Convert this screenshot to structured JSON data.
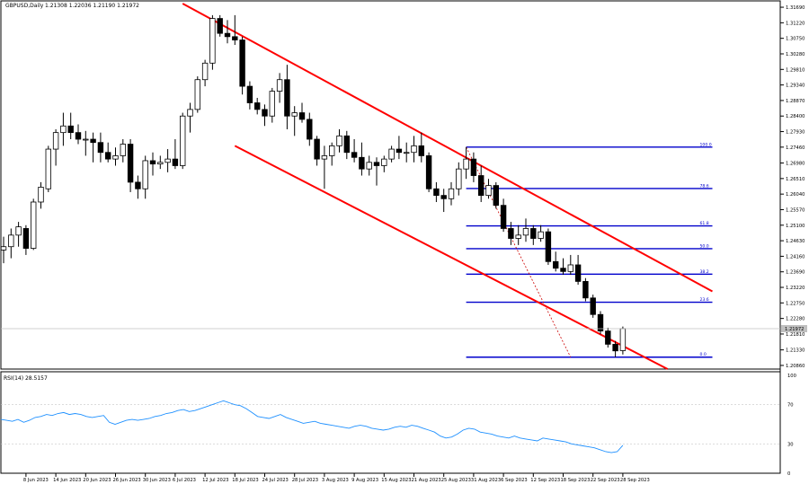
{
  "header": {
    "symbol_title": "GBPUSD,Daily",
    "ohlc_text": "1.21308 1.22036 1.21190 1.21972"
  },
  "rsi_panel": {
    "label": "RSI(14) 28.5157",
    "levels": [
      "100",
      "70",
      "30",
      "0"
    ]
  },
  "colors": {
    "channel": "#ff0000",
    "fib": "#0000cc",
    "rsi_line": "#1e90ff",
    "retrace_dotted": "#cc0000",
    "bull_body": "#ffffff",
    "bear_body": "#000000"
  },
  "chart_data": [
    {
      "type": "candlestick",
      "title": "GBPUSD,Daily",
      "y_ticks": [
        "1.31690",
        "1.31220",
        "1.30750",
        "1.30280",
        "1.29810",
        "1.29340",
        "1.28870",
        "1.28400",
        "1.27930",
        "1.27460",
        "1.26980",
        "1.26510",
        "1.26040",
        "1.25570",
        "1.25100",
        "1.24630",
        "1.24160",
        "1.23690",
        "1.23220",
        "1.22750",
        "1.22280",
        "1.21810",
        "1.21330",
        "1.20860"
      ],
      "ylim": [
        1.2075,
        1.318
      ],
      "current_price": "1.21972",
      "x_ticks": [
        "8 Jun 2023",
        "14 Jun 2023",
        "20 Jun 2023",
        "26 Jun 2023",
        "30 Jun 2023",
        "6 Jul 2023",
        "12 Jul 2023",
        "18 Jul 2023",
        "24 Jul 2023",
        "28 Jul 2023",
        "3 Aug 2023",
        "9 Aug 2023",
        "15 Aug 2023",
        "21 Aug 2023",
        "25 Aug 2023",
        "31 Aug 2023",
        "6 Sep 2023",
        "12 Sep 2023",
        "18 Sep 2023",
        "22 Sep 2023",
        "28 Sep 2023"
      ],
      "candles": [
        {
          "date": "5 Jun 2023",
          "o": 1.2435,
          "h": 1.2475,
          "l": 1.2395,
          "c": 1.2445
        },
        {
          "date": "6 Jun 2023",
          "o": 1.2445,
          "h": 1.25,
          "l": 1.241,
          "c": 1.248
        },
        {
          "date": "7 Jun 2023",
          "o": 1.248,
          "h": 1.252,
          "l": 1.2445,
          "c": 1.2505
        },
        {
          "date": "8 Jun 2023",
          "o": 1.25,
          "h": 1.251,
          "l": 1.242,
          "c": 1.244
        },
        {
          "date": "9 Jun 2023",
          "o": 1.244,
          "h": 1.259,
          "l": 1.2435,
          "c": 1.258
        },
        {
          "date": "12 Jun 2023",
          "o": 1.258,
          "h": 1.264,
          "l": 1.256,
          "c": 1.2625
        },
        {
          "date": "13 Jun 2023",
          "o": 1.262,
          "h": 1.275,
          "l": 1.261,
          "c": 1.274
        },
        {
          "date": "14 Jun 2023",
          "o": 1.274,
          "h": 1.28,
          "l": 1.269,
          "c": 1.279
        },
        {
          "date": "15 Jun 2023",
          "o": 1.279,
          "h": 1.285,
          "l": 1.275,
          "c": 1.281
        },
        {
          "date": "16 Jun 2023",
          "o": 1.281,
          "h": 1.285,
          "l": 1.277,
          "c": 1.279
        },
        {
          "date": "19 Jun 2023",
          "o": 1.279,
          "h": 1.2815,
          "l": 1.2755,
          "c": 1.277
        },
        {
          "date": "20 Jun 2023",
          "o": 1.277,
          "h": 1.2795,
          "l": 1.272,
          "c": 1.277
        },
        {
          "date": "21 Jun 2023",
          "o": 1.277,
          "h": 1.279,
          "l": 1.27,
          "c": 1.276
        },
        {
          "date": "22 Jun 2023",
          "o": 1.276,
          "h": 1.279,
          "l": 1.27,
          "c": 1.273
        },
        {
          "date": "23 Jun 2023",
          "o": 1.273,
          "h": 1.276,
          "l": 1.27,
          "c": 1.271
        },
        {
          "date": "26 Jun 2023",
          "o": 1.271,
          "h": 1.2745,
          "l": 1.269,
          "c": 1.272
        },
        {
          "date": "27 Jun 2023",
          "o": 1.272,
          "h": 1.277,
          "l": 1.27,
          "c": 1.2755
        },
        {
          "date": "28 Jun 2023",
          "o": 1.2755,
          "h": 1.277,
          "l": 1.261,
          "c": 1.264
        },
        {
          "date": "29 Jun 2023",
          "o": 1.264,
          "h": 1.266,
          "l": 1.259,
          "c": 1.262
        },
        {
          "date": "30 Jun 2023",
          "o": 1.262,
          "h": 1.272,
          "l": 1.259,
          "c": 1.2705
        },
        {
          "date": "3 Jul 2023",
          "o": 1.2705,
          "h": 1.273,
          "l": 1.266,
          "c": 1.2695
        },
        {
          "date": "4 Jul 2023",
          "o": 1.2695,
          "h": 1.272,
          "l": 1.268,
          "c": 1.27
        },
        {
          "date": "5 Jul 2023",
          "o": 1.27,
          "h": 1.274,
          "l": 1.267,
          "c": 1.271
        },
        {
          "date": "6 Jul 2023",
          "o": 1.271,
          "h": 1.277,
          "l": 1.268,
          "c": 1.269
        },
        {
          "date": "7 Jul 2023",
          "o": 1.269,
          "h": 1.285,
          "l": 1.268,
          "c": 1.284
        },
        {
          "date": "10 Jul 2023",
          "o": 1.284,
          "h": 1.288,
          "l": 1.279,
          "c": 1.286
        },
        {
          "date": "11 Jul 2023",
          "o": 1.286,
          "h": 1.296,
          "l": 1.285,
          "c": 1.295
        },
        {
          "date": "12 Jul 2023",
          "o": 1.295,
          "h": 1.301,
          "l": 1.293,
          "c": 1.3
        },
        {
          "date": "13 Jul 2023",
          "o": 1.3,
          "h": 1.3145,
          "l": 1.298,
          "c": 1.3135
        },
        {
          "date": "14 Jul 2023",
          "o": 1.3135,
          "h": 1.3145,
          "l": 1.308,
          "c": 1.309
        },
        {
          "date": "17 Jul 2023",
          "o": 1.309,
          "h": 1.313,
          "l": 1.306,
          "c": 1.308
        },
        {
          "date": "18 Jul 2023",
          "o": 1.308,
          "h": 1.3145,
          "l": 1.3055,
          "c": 1.307
        },
        {
          "date": "19 Jul 2023",
          "o": 1.307,
          "h": 1.308,
          "l": 1.2905,
          "c": 1.293
        },
        {
          "date": "20 Jul 2023",
          "o": 1.293,
          "h": 1.2945,
          "l": 1.286,
          "c": 1.288
        },
        {
          "date": "21 Jul 2023",
          "o": 1.288,
          "h": 1.2895,
          "l": 1.2845,
          "c": 1.286
        },
        {
          "date": "24 Jul 2023",
          "o": 1.286,
          "h": 1.2875,
          "l": 1.281,
          "c": 1.284
        },
        {
          "date": "25 Jul 2023",
          "o": 1.284,
          "h": 1.2925,
          "l": 1.282,
          "c": 1.2915
        },
        {
          "date": "26 Jul 2023",
          "o": 1.2915,
          "h": 1.297,
          "l": 1.288,
          "c": 1.295
        },
        {
          "date": "27 Jul 2023",
          "o": 1.295,
          "h": 1.2995,
          "l": 1.28,
          "c": 1.284
        },
        {
          "date": "28 Jul 2023",
          "o": 1.284,
          "h": 1.287,
          "l": 1.278,
          "c": 1.285
        },
        {
          "date": "31 Jul 2023",
          "o": 1.285,
          "h": 1.288,
          "l": 1.282,
          "c": 1.283
        },
        {
          "date": "1 Aug 2023",
          "o": 1.283,
          "h": 1.285,
          "l": 1.275,
          "c": 1.277
        },
        {
          "date": "2 Aug 2023",
          "o": 1.277,
          "h": 1.278,
          "l": 1.269,
          "c": 1.271
        },
        {
          "date": "3 Aug 2023",
          "o": 1.271,
          "h": 1.275,
          "l": 1.262,
          "c": 1.272
        },
        {
          "date": "4 Aug 2023",
          "o": 1.272,
          "h": 1.276,
          "l": 1.269,
          "c": 1.275
        },
        {
          "date": "7 Aug 2023",
          "o": 1.275,
          "h": 1.28,
          "l": 1.273,
          "c": 1.278
        },
        {
          "date": "8 Aug 2023",
          "o": 1.278,
          "h": 1.2795,
          "l": 1.271,
          "c": 1.273
        },
        {
          "date": "9 Aug 2023",
          "o": 1.273,
          "h": 1.277,
          "l": 1.27,
          "c": 1.2715
        },
        {
          "date": "10 Aug 2023",
          "o": 1.2715,
          "h": 1.276,
          "l": 1.266,
          "c": 1.268
        },
        {
          "date": "11 Aug 2023",
          "o": 1.268,
          "h": 1.272,
          "l": 1.266,
          "c": 1.27
        },
        {
          "date": "14 Aug 2023",
          "o": 1.27,
          "h": 1.2715,
          "l": 1.263,
          "c": 1.269
        },
        {
          "date": "15 Aug 2023",
          "o": 1.269,
          "h": 1.272,
          "l": 1.267,
          "c": 1.271
        },
        {
          "date": "16 Aug 2023",
          "o": 1.271,
          "h": 1.275,
          "l": 1.27,
          "c": 1.274
        },
        {
          "date": "17 Aug 2023",
          "o": 1.274,
          "h": 1.278,
          "l": 1.271,
          "c": 1.273
        },
        {
          "date": "18 Aug 2023",
          "o": 1.273,
          "h": 1.276,
          "l": 1.27,
          "c": 1.273
        },
        {
          "date": "21 Aug 2023",
          "o": 1.273,
          "h": 1.278,
          "l": 1.27,
          "c": 1.275
        },
        {
          "date": "22 Aug 2023",
          "o": 1.275,
          "h": 1.279,
          "l": 1.27,
          "c": 1.272
        },
        {
          "date": "23 Aug 2023",
          "o": 1.272,
          "h": 1.273,
          "l": 1.261,
          "c": 1.262
        },
        {
          "date": "24 Aug 2023",
          "o": 1.262,
          "h": 1.264,
          "l": 1.258,
          "c": 1.26
        },
        {
          "date": "25 Aug 2023",
          "o": 1.26,
          "h": 1.262,
          "l": 1.255,
          "c": 1.259
        },
        {
          "date": "28 Aug 2023",
          "o": 1.259,
          "h": 1.264,
          "l": 1.257,
          "c": 1.262
        },
        {
          "date": "29 Aug 2023",
          "o": 1.262,
          "h": 1.27,
          "l": 1.26,
          "c": 1.268
        },
        {
          "date": "30 Aug 2023",
          "o": 1.268,
          "h": 1.2746,
          "l": 1.265,
          "c": 1.271
        },
        {
          "date": "31 Aug 2023",
          "o": 1.271,
          "h": 1.273,
          "l": 1.264,
          "c": 1.266
        },
        {
          "date": "1 Sep 2023",
          "o": 1.266,
          "h": 1.269,
          "l": 1.258,
          "c": 1.26
        },
        {
          "date": "4 Sep 2023",
          "o": 1.26,
          "h": 1.265,
          "l": 1.259,
          "c": 1.263
        },
        {
          "date": "5 Sep 2023",
          "o": 1.263,
          "h": 1.264,
          "l": 1.256,
          "c": 1.257
        },
        {
          "date": "6 Sep 2023",
          "o": 1.257,
          "h": 1.259,
          "l": 1.249,
          "c": 1.25
        },
        {
          "date": "7 Sep 2023",
          "o": 1.25,
          "h": 1.252,
          "l": 1.245,
          "c": 1.247
        },
        {
          "date": "8 Sep 2023",
          "o": 1.247,
          "h": 1.251,
          "l": 1.245,
          "c": 1.248
        },
        {
          "date": "11 Sep 2023",
          "o": 1.248,
          "h": 1.253,
          "l": 1.246,
          "c": 1.25
        },
        {
          "date": "12 Sep 2023",
          "o": 1.25,
          "h": 1.251,
          "l": 1.245,
          "c": 1.247
        },
        {
          "date": "13 Sep 2023",
          "o": 1.247,
          "h": 1.251,
          "l": 1.246,
          "c": 1.249
        },
        {
          "date": "14 Sep 2023",
          "o": 1.249,
          "h": 1.25,
          "l": 1.239,
          "c": 1.24
        },
        {
          "date": "15 Sep 2023",
          "o": 1.24,
          "h": 1.243,
          "l": 1.237,
          "c": 1.238
        },
        {
          "date": "18 Sep 2023",
          "o": 1.238,
          "h": 1.241,
          "l": 1.236,
          "c": 1.237
        },
        {
          "date": "19 Sep 2023",
          "o": 1.237,
          "h": 1.242,
          "l": 1.236,
          "c": 1.239
        },
        {
          "date": "20 Sep 2023",
          "o": 1.239,
          "h": 1.242,
          "l": 1.233,
          "c": 1.234
        },
        {
          "date": "21 Sep 2023",
          "o": 1.234,
          "h": 1.235,
          "l": 1.228,
          "c": 1.229
        },
        {
          "date": "22 Sep 2023",
          "o": 1.229,
          "h": 1.23,
          "l": 1.223,
          "c": 1.224
        },
        {
          "date": "25 Sep 2023",
          "o": 1.224,
          "h": 1.225,
          "l": 1.218,
          "c": 1.219
        },
        {
          "date": "26 Sep 2023",
          "o": 1.219,
          "h": 1.22,
          "l": 1.214,
          "c": 1.215
        },
        {
          "date": "27 Sep 2023",
          "o": 1.215,
          "h": 1.216,
          "l": 1.2111,
          "c": 1.213
        },
        {
          "date": "28 Sep 2023",
          "o": 1.21308,
          "h": 1.22036,
          "l": 1.2119,
          "c": 1.21972
        }
      ],
      "fibonacci_levels": [
        {
          "label": "100.0",
          "price": 1.2746
        },
        {
          "label": "78.6",
          "price": 1.2621
        },
        {
          "label": "61.8",
          "price": 1.2508
        },
        {
          "label": "50.0",
          "price": 1.2439
        },
        {
          "label": "38.2",
          "price": 1.2362
        },
        {
          "label": "23.6",
          "price": 1.2277
        },
        {
          "label": "0.0",
          "price": 1.2111
        }
      ],
      "fib_span": {
        "from": "30 Aug 2023",
        "to": "16 Oct 2023"
      },
      "channel_lines": [
        {
          "from": {
            "date": "7 Jul 2023",
            "price": 1.318
          },
          "to": {
            "date": "16 Oct 2023",
            "price": 1.231
          }
        },
        {
          "from": {
            "date": "18 Jul 2023",
            "price": 1.275
          },
          "to": {
            "date": "6 Oct 2023",
            "price": 1.2075
          }
        }
      ],
      "dotted_line": {
        "from": {
          "date": "30 Aug 2023",
          "price": 1.2746
        },
        "to": {
          "date": "19 Sep 2023",
          "price": 1.2111
        }
      }
    },
    {
      "type": "line",
      "title": "RSI(14) 28.5157",
      "ylim": [
        0,
        100
      ],
      "reference_levels": [
        70,
        30
      ],
      "values": [
        55,
        54,
        53,
        55,
        52,
        54,
        57,
        58,
        60,
        59,
        61,
        62,
        60,
        61,
        60,
        58,
        57,
        58,
        59,
        52,
        50,
        52,
        54,
        55,
        54,
        55,
        56,
        58,
        59,
        61,
        62,
        64,
        65,
        63,
        64,
        66,
        68,
        70,
        72,
        74,
        72,
        70,
        69,
        66,
        62,
        58,
        57,
        56,
        58,
        60,
        57,
        55,
        53,
        51,
        52,
        53,
        51,
        50,
        49,
        48,
        47,
        46,
        48,
        49,
        48,
        46,
        45,
        44,
        45,
        47,
        48,
        47,
        49,
        48,
        46,
        44,
        42,
        38,
        36,
        37,
        40,
        44,
        46,
        45,
        42,
        41,
        40,
        38,
        37,
        36,
        38,
        36,
        35,
        34,
        33,
        36,
        35,
        34,
        33,
        32,
        30,
        29,
        28,
        27,
        26,
        24,
        22,
        21,
        22,
        28.5
      ]
    }
  ]
}
